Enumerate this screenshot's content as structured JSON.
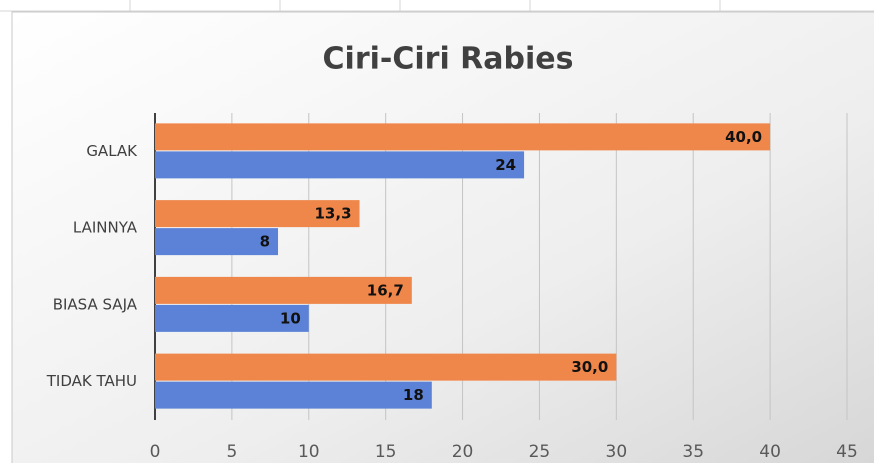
{
  "chart_data": {
    "type": "hbar",
    "title": "Ciri-Ciri Rabies",
    "categories": [
      "GALAK",
      "LAINNYA",
      "BIASA SAJA",
      "TIDAK TAHU"
    ],
    "series": [
      {
        "color": "#f0874a",
        "values": [
          40.0,
          13.3,
          16.7,
          30.0
        ],
        "value_labels": [
          "40,0",
          "13,3",
          "16,7",
          "30,0"
        ]
      },
      {
        "color": "#5b82d6",
        "values": [
          24,
          8,
          10,
          18
        ]
      }
    ],
    "xlim": [
      0,
      45
    ],
    "xticks": [
      0,
      5,
      10,
      15,
      20,
      25,
      30,
      35,
      40,
      45
    ],
    "grid": true
  }
}
